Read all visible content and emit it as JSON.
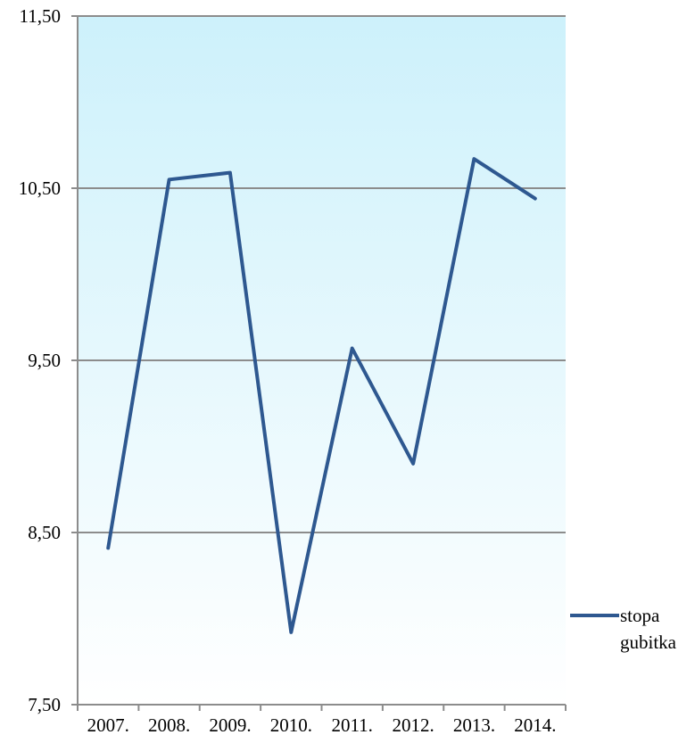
{
  "chart_data": {
    "type": "line",
    "categories": [
      "2007.",
      "2008.",
      "2009.",
      "2010.",
      "2011.",
      "2012.",
      "2013.",
      "2014."
    ],
    "series": [
      {
        "name": "stopa gubitka",
        "values": [
          8.41,
          10.55,
          10.59,
          7.92,
          9.57,
          8.9,
          10.67,
          10.44
        ],
        "color": "#2e5890"
      }
    ],
    "y_ticks": [
      "7,50",
      "8,50",
      "9,50",
      "10,50",
      "11,50"
    ],
    "ylim": [
      7.5,
      11.5
    ],
    "grid": true,
    "legend": {
      "position": "right",
      "lines": [
        "stopa",
        "gubitka"
      ]
    },
    "colors": {
      "plot_gradient_top": "#cdf1fb",
      "plot_gradient_bottom": "#ffffff",
      "gridline": "#8c8c8c",
      "axis": "#8c8c8c"
    }
  }
}
